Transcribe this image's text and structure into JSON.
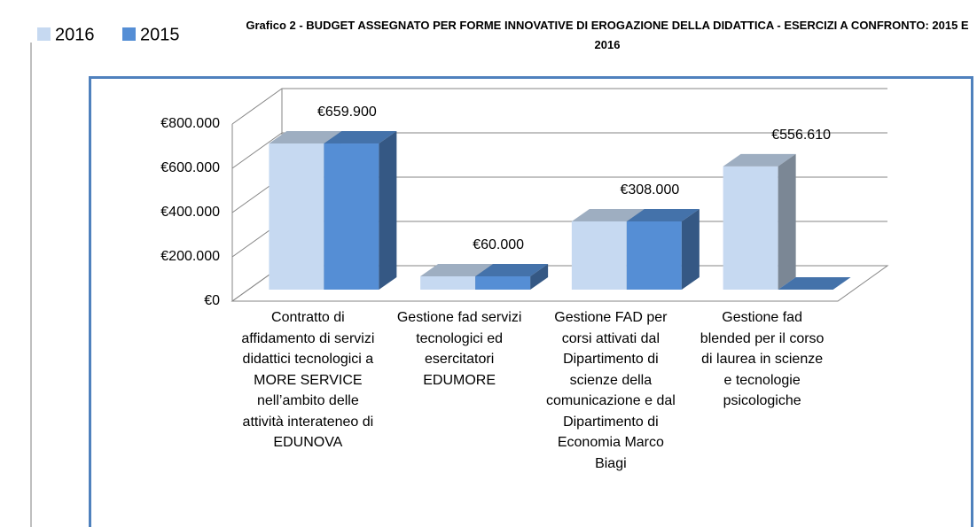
{
  "chart_data": {
    "type": "bar3d",
    "title": "Grafico 2 - BUDGET ASSEGNATO PER FORME INNOVATIVE DI EROGAZIONE DELLA DIDATTICA - ESERCIZI A CONFRONTO: 2015 E 2016",
    "categories": [
      "Contratto di affidamento di servizi didattici tecnologici a MORE SERVICE nell’ambito delle attività interateneo di EDUNOVA",
      "Gestione fad servizi tecnologici ed esercitatori EDUMORE",
      "Gestione FAD per corsi attivati dal Dipartimento di scienze della comunicazione e dal Dipartimento di Economia Marco Biagi",
      "Gestione fad blended per il corso di laurea in scienze e tecnologie psicologiche"
    ],
    "series": [
      {
        "name": "2016",
        "color": "#c6d9f1",
        "values": [
          659900,
          60000,
          308000,
          556610
        ],
        "value_labels": [
          "€659.900",
          "€60.000",
          "€308.000",
          "€556.610"
        ]
      },
      {
        "name": "2015",
        "color": "#558ed5",
        "values": [
          659900,
          60000,
          308000,
          0
        ]
      }
    ],
    "ylim": [
      0,
      800000
    ],
    "yticks": [
      {
        "value": 0,
        "label": "€0"
      },
      {
        "value": 200000,
        "label": "€200.000"
      },
      {
        "value": 400000,
        "label": "€400.000"
      },
      {
        "value": 600000,
        "label": "€600.000"
      },
      {
        "value": 800000,
        "label": "€800.000"
      }
    ],
    "grid": true,
    "legend": "top-left"
  }
}
